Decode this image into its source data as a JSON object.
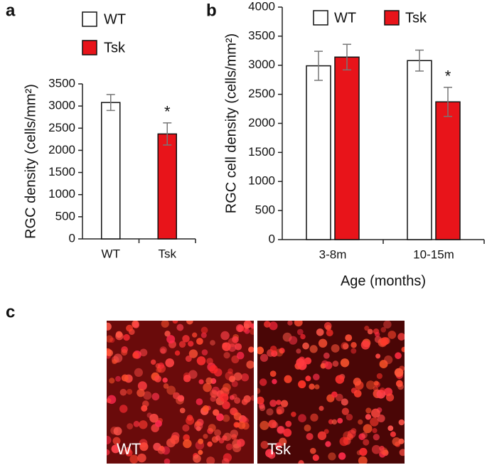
{
  "chart_data": [
    {
      "type": "bar",
      "panel_label": "a",
      "y_label": "RGC density (cells/mm²)",
      "categories": [
        "WT",
        "Tsk"
      ],
      "values": [
        3080,
        2370
      ],
      "errors": [
        180,
        250
      ],
      "colors": [
        "#ffffff",
        "#e8141a"
      ],
      "annotations": [
        null,
        "*"
      ],
      "legend": [
        {
          "name": "WT",
          "color": "#ffffff"
        },
        {
          "name": "Tsk",
          "color": "#e8141a"
        }
      ],
      "ylim": [
        0,
        3500
      ],
      "yticks": [
        0,
        500,
        1000,
        1500,
        2000,
        2500,
        3000,
        3500
      ]
    },
    {
      "type": "bar",
      "panel_label": "b",
      "y_label": "RGC cell density (cells/mm²)",
      "x_label": "Age (months)",
      "categories": [
        "3-8m",
        "10-15m"
      ],
      "series": [
        {
          "name": "WT",
          "color": "#ffffff",
          "values": [
            2990,
            3080
          ],
          "errors": [
            250,
            180
          ],
          "annotations": [
            null,
            null
          ]
        },
        {
          "name": "Tsk",
          "color": "#e8141a",
          "values": [
            3140,
            2370
          ],
          "errors": [
            220,
            250
          ],
          "annotations": [
            null,
            "*"
          ]
        }
      ],
      "ylim": [
        0,
        4000
      ],
      "yticks": [
        0,
        500,
        1000,
        1500,
        2000,
        2500,
        3000,
        3500,
        4000
      ]
    }
  ],
  "image_panel": {
    "panel_label": "c",
    "images": [
      {
        "label": "WT"
      },
      {
        "label": "Tsk"
      }
    ]
  }
}
